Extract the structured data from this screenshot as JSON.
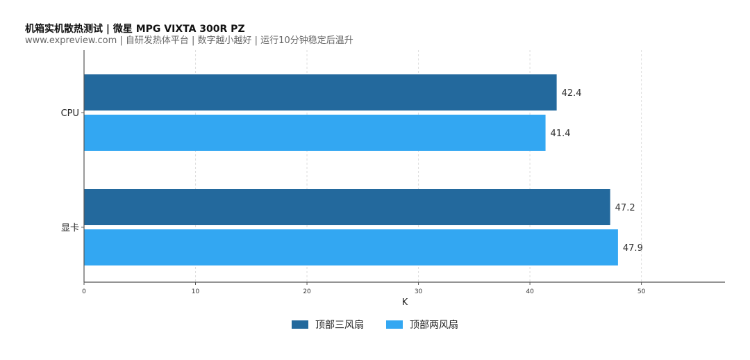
{
  "chart_data": {
    "type": "bar",
    "orientation": "horizontal",
    "title": "机箱实机散热测试 | 微星 MPG VIXTA 300R PZ",
    "subtitle": "www.expreview.com | 自研发热体平台 | 数字越小越好 | 运行10分钟稳定后温升",
    "categories": [
      "CPU",
      "显卡"
    ],
    "series": [
      {
        "name": "顶部三风扇",
        "color": "#23699d",
        "values": [
          42.4,
          47.2
        ]
      },
      {
        "name": "顶部两风扇",
        "color": "#33a7f2",
        "values": [
          41.4,
          47.9
        ]
      }
    ],
    "xlabel": "K",
    "ylabel": "",
    "xlim": [
      0,
      57.5
    ],
    "xticks": [
      0,
      10,
      20,
      30,
      40,
      50
    ],
    "grid": "vertical-dotted",
    "legend_position": "bottom-center"
  }
}
